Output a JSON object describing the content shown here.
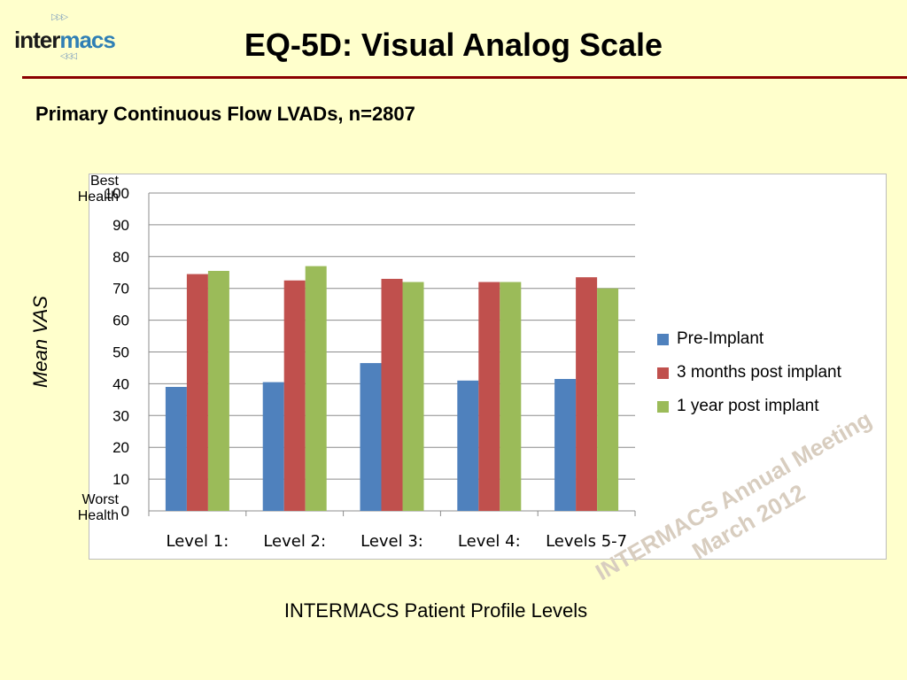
{
  "header": {
    "logo_part1": "inter",
    "logo_part2": "macs",
    "title": "EQ-5D:  Visual Analog Scale",
    "subtitle": "Primary Continuous Flow LVADs, n=2807"
  },
  "axis_labels": {
    "top_anchor": "Best Health",
    "bottom_anchor": "Worst Health"
  },
  "watermark": {
    "line1": "INTERMACS Annual Meeting",
    "line2": "March 2012"
  },
  "colors": {
    "pre_implant": "#4f81bd",
    "three_months": "#c0504d",
    "one_year": "#9bbb59",
    "title_rule": "#8b0000",
    "background": "#ffffcc"
  },
  "chart_data": {
    "type": "bar",
    "title": "",
    "xlabel": "INTERMACS Patient Profile Levels",
    "ylabel": "Mean VAS",
    "ylim": [
      0,
      100
    ],
    "yticks": [
      0,
      10,
      20,
      30,
      40,
      50,
      60,
      70,
      80,
      90,
      100
    ],
    "grid": true,
    "legend_position": "right",
    "categories": [
      "Level 1:",
      "Level 2:",
      "Level 3:",
      "Level 4:",
      "Levels 5-7"
    ],
    "series": [
      {
        "name": "Pre-Implant",
        "values": [
          39,
          40.5,
          46.5,
          41,
          41.5
        ]
      },
      {
        "name": "3 months post implant",
        "values": [
          74.5,
          72.5,
          73,
          72,
          73.5
        ]
      },
      {
        "name": "1 year post implant",
        "values": [
          75.5,
          77,
          72,
          72,
          70
        ]
      }
    ]
  }
}
